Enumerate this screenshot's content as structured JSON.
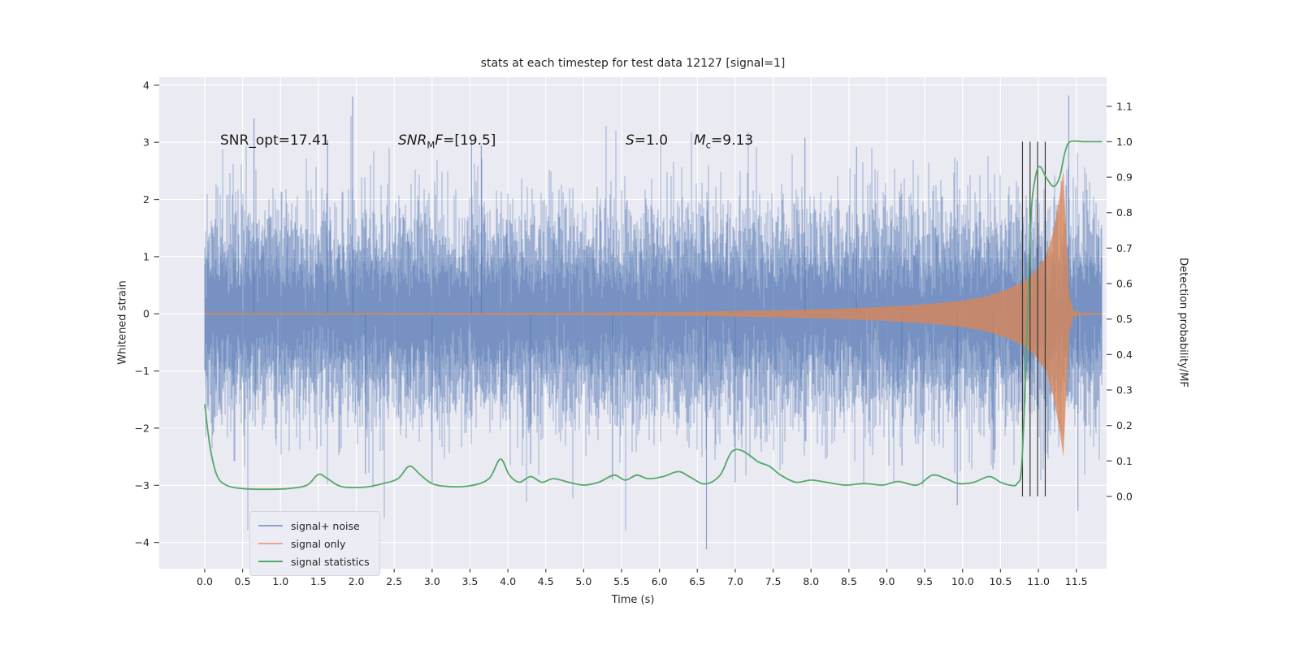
{
  "chart_data": {
    "type": "line",
    "title": "stats at each timestep for test data 12127 [signal=1]",
    "xlabel": "Time (s)",
    "ylabel_left": "Whitened strain",
    "ylabel_right": "Detection probability/MF",
    "xlim": [
      -0.6,
      11.9
    ],
    "ylim_left": [
      -4.46,
      4.14
    ],
    "ylim_right": [
      -0.204,
      1.182
    ],
    "grid": true,
    "background": "#eaeaf2",
    "x_tick_labels": [
      "0.0",
      "0.5",
      "1.0",
      "1.5",
      "2.0",
      "2.5",
      "3.0",
      "3.5",
      "4.0",
      "4.5",
      "5.0",
      "5.5",
      "6.0",
      "6.5",
      "7.0",
      "7.5",
      "8.0",
      "8.5",
      "9.0",
      "9.5",
      "10.0",
      "10.5",
      "11.0",
      "11.5"
    ],
    "y_tick_labels_left": [
      "4",
      "3",
      "2",
      "1",
      "0",
      "−1",
      "−2",
      "−3",
      "−4"
    ],
    "y_tick_labels_right": [
      "1.1",
      "1.0",
      "0.9",
      "0.8",
      "0.7",
      "0.6",
      "0.5",
      "0.4",
      "0.3",
      "0.2",
      "0.1",
      "0.0"
    ],
    "annotations": {
      "snr_opt": {
        "text": "SNR_opt=17.41",
        "t": 0.2,
        "y": 3.03
      },
      "snr_mf": {
        "italic": "SNR",
        "sub": "M",
        "italic2": "F",
        "text": "=[19.5]",
        "t": 2.55,
        "y": 3.03
      },
      "s": {
        "italic": "S",
        "text": "=1.0",
        "t": 5.55,
        "y": 3.03
      },
      "mc": {
        "italic": "M",
        "sub": "c",
        "text": "=9.13",
        "t": 6.45,
        "y": 3.03
      }
    },
    "legend": {
      "position": "lower left",
      "items": [
        {
          "label": "signal+ noise",
          "color": "#8ba2ca"
        },
        {
          "label": "signal only",
          "color": "#e7a98b"
        },
        {
          "label": "signal statistics",
          "color": "#55a868"
        }
      ]
    },
    "series": [
      {
        "name": "signal+ noise",
        "axis": "left",
        "plot_color": "#4C72B0",
        "kind": "stochastic_noise",
        "time_range": [
          0,
          11.84
        ],
        "mean": 0,
        "std": 0.9,
        "typical_peak": 1.9,
        "outlier_spikes": [
          [
            0.65,
            3.42
          ],
          [
            1.62,
            3.05
          ],
          [
            1.95,
            3.8
          ],
          [
            2.12,
            -2.8
          ],
          [
            3.0,
            -2.95
          ],
          [
            3.52,
            3.05
          ],
          [
            3.65,
            2.95
          ],
          [
            4.3,
            -2.62
          ],
          [
            5.38,
            -2.9
          ],
          [
            6.62,
            -4.12
          ],
          [
            7.0,
            -2.95
          ],
          [
            7.92,
            3.08
          ],
          [
            8.6,
            2.92
          ],
          [
            9.2,
            -2.65
          ],
          [
            9.93,
            -3.35
          ],
          [
            10.4,
            -2.72
          ],
          [
            11.4,
            3.82
          ],
          [
            11.52,
            -3.45
          ]
        ]
      },
      {
        "name": "signal only",
        "axis": "left",
        "plot_color": "#DD8452",
        "kind": "chirp_envelope",
        "merger_time": 11.33,
        "peak_amplitude": 2.5,
        "envelope": [
          [
            0,
            0.013
          ],
          [
            1,
            0.013
          ],
          [
            2,
            0.014
          ],
          [
            3,
            0.016
          ],
          [
            4,
            0.018
          ],
          [
            5,
            0.022
          ],
          [
            5.5,
            0.026
          ],
          [
            6,
            0.03
          ],
          [
            6.5,
            0.038
          ],
          [
            7,
            0.048
          ],
          [
            7.5,
            0.06
          ],
          [
            8,
            0.075
          ],
          [
            8.5,
            0.095
          ],
          [
            9,
            0.125
          ],
          [
            9.5,
            0.165
          ],
          [
            10,
            0.23
          ],
          [
            10.3,
            0.3
          ],
          [
            10.6,
            0.43
          ],
          [
            10.8,
            0.56
          ],
          [
            10.95,
            0.72
          ],
          [
            11.1,
            1.0
          ],
          [
            11.2,
            1.45
          ],
          [
            11.28,
            2.05
          ],
          [
            11.33,
            2.5
          ],
          [
            11.37,
            1.3
          ],
          [
            11.41,
            0.3
          ],
          [
            11.46,
            0.06
          ],
          [
            11.55,
            0.02
          ],
          [
            11.84,
            0.012
          ]
        ]
      },
      {
        "name": "signal statistics",
        "axis": "right",
        "plot_color": "#55a868",
        "kind": "line",
        "points": [
          [
            0,
            0.26
          ],
          [
            0.07,
            0.14
          ],
          [
            0.16,
            0.06
          ],
          [
            0.28,
            0.032
          ],
          [
            0.5,
            0.022
          ],
          [
            0.8,
            0.02
          ],
          [
            1.1,
            0.022
          ],
          [
            1.35,
            0.032
          ],
          [
            1.5,
            0.062
          ],
          [
            1.62,
            0.05
          ],
          [
            1.8,
            0.028
          ],
          [
            2.1,
            0.026
          ],
          [
            2.35,
            0.036
          ],
          [
            2.55,
            0.05
          ],
          [
            2.7,
            0.085
          ],
          [
            2.85,
            0.06
          ],
          [
            3.0,
            0.036
          ],
          [
            3.2,
            0.028
          ],
          [
            3.5,
            0.03
          ],
          [
            3.75,
            0.05
          ],
          [
            3.9,
            0.105
          ],
          [
            4.02,
            0.06
          ],
          [
            4.15,
            0.04
          ],
          [
            4.3,
            0.056
          ],
          [
            4.45,
            0.04
          ],
          [
            4.6,
            0.05
          ],
          [
            4.8,
            0.04
          ],
          [
            5.0,
            0.032
          ],
          [
            5.2,
            0.04
          ],
          [
            5.4,
            0.06
          ],
          [
            5.55,
            0.046
          ],
          [
            5.7,
            0.06
          ],
          [
            5.85,
            0.05
          ],
          [
            6.05,
            0.056
          ],
          [
            6.25,
            0.07
          ],
          [
            6.4,
            0.055
          ],
          [
            6.6,
            0.035
          ],
          [
            6.8,
            0.06
          ],
          [
            6.95,
            0.125
          ],
          [
            7.1,
            0.128
          ],
          [
            7.3,
            0.098
          ],
          [
            7.45,
            0.085
          ],
          [
            7.6,
            0.06
          ],
          [
            7.8,
            0.04
          ],
          [
            8.0,
            0.046
          ],
          [
            8.2,
            0.04
          ],
          [
            8.45,
            0.032
          ],
          [
            8.7,
            0.036
          ],
          [
            8.95,
            0.032
          ],
          [
            9.15,
            0.042
          ],
          [
            9.4,
            0.032
          ],
          [
            9.6,
            0.06
          ],
          [
            9.78,
            0.05
          ],
          [
            9.95,
            0.036
          ],
          [
            10.15,
            0.04
          ],
          [
            10.35,
            0.056
          ],
          [
            10.5,
            0.04
          ],
          [
            10.62,
            0.032
          ],
          [
            10.72,
            0.036
          ],
          [
            10.78,
            0.09
          ],
          [
            10.84,
            0.4
          ],
          [
            10.9,
            0.78
          ],
          [
            10.96,
            0.9
          ],
          [
            11.02,
            0.93
          ],
          [
            11.1,
            0.9
          ],
          [
            11.2,
            0.874
          ],
          [
            11.28,
            0.9
          ],
          [
            11.35,
            0.97
          ],
          [
            11.42,
            1.0
          ],
          [
            11.6,
            1.0
          ],
          [
            11.84,
            1.0
          ]
        ]
      }
    ],
    "vlines": {
      "times": [
        10.79,
        10.89,
        10.99,
        11.09
      ],
      "color": "#3a3a3a",
      "span_right_axis": [
        0,
        1.0
      ]
    }
  },
  "layout_colors": {
    "figure_bg": "#ffffff",
    "grid": "#ffffff",
    "text": "#262626",
    "tick": "#555555"
  }
}
